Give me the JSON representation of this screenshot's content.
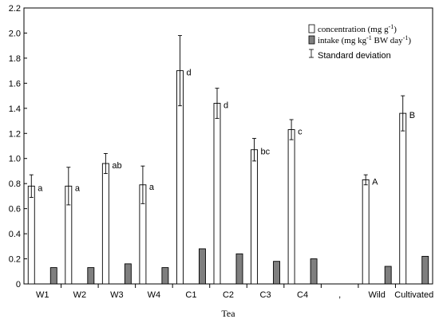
{
  "chart_data": {
    "type": "bar",
    "xlabel": "Tea",
    "ylabel": "",
    "ylim": [
      0,
      2.2
    ],
    "yticks": [
      "0",
      "0.2",
      "0.4",
      "0.6",
      "0.8",
      "1.0",
      "1.2",
      "1.4",
      "1.6",
      "1.8",
      "2.0",
      "2.2"
    ],
    "categories": [
      "W1",
      "W2",
      "W3",
      "W4",
      "C1",
      "C2",
      "C3",
      "C4",
      ",",
      "Wild",
      "Cultivated"
    ],
    "grid": false,
    "legend_position": "top-right",
    "series": [
      {
        "name": "concentration (mg g⁻¹)",
        "legend_text": "concentration (mg g",
        "legend_sup": "-1",
        "legend_tail": ")",
        "color": "#ffffff",
        "values": [
          0.78,
          0.78,
          0.96,
          0.79,
          1.7,
          1.44,
          1.07,
          1.23,
          null,
          0.83,
          1.36
        ],
        "error": [
          0.09,
          0.15,
          0.08,
          0.15,
          0.28,
          0.12,
          0.09,
          0.08,
          null,
          0.04,
          0.14
        ],
        "significance": [
          "a",
          "a",
          "ab",
          "a",
          "d",
          "d",
          "bc",
          "c",
          "",
          "A",
          "B"
        ]
      },
      {
        "name": "intake (mg kg⁻¹ BW day⁻¹)",
        "legend_text": "intake (mg kg",
        "legend_sup": "-1",
        "legend_mid": " BW day",
        "legend_sup2": "-1",
        "legend_tail": ")",
        "color": "#7f7f7f",
        "values": [
          0.13,
          0.13,
          0.16,
          0.13,
          0.28,
          0.24,
          0.18,
          0.2,
          null,
          0.14,
          0.22
        ]
      }
    ],
    "error_legend": "Standard deviation"
  }
}
